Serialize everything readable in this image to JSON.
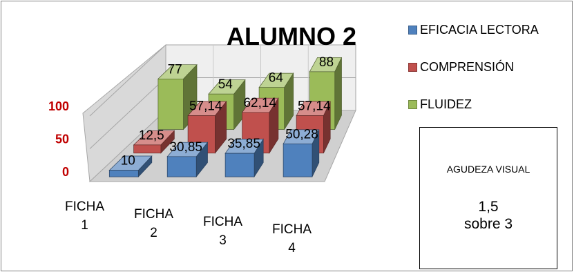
{
  "chart_data": {
    "type": "bar",
    "title": "ALUMNO 2",
    "categories": [
      "FICHA 1",
      "FICHA 2",
      "FICHA 3",
      "FICHA 4"
    ],
    "category_lines": [
      [
        "FICHA",
        "1"
      ],
      [
        "FICHA",
        "2"
      ],
      [
        "FICHA",
        "3"
      ],
      [
        "FICHA",
        "4"
      ]
    ],
    "series": [
      {
        "name": "EFICACIA LECTORA",
        "values": [
          10,
          30.85,
          35.85,
          50.28
        ],
        "labels": [
          "10",
          "30,85",
          "35,85",
          "50,28"
        ],
        "color": "#4f81bd"
      },
      {
        "name": "COMPRENSIÓN",
        "values": [
          12.5,
          57.14,
          62.14,
          57.14
        ],
        "labels": [
          "12,5",
          "57,14",
          "62,14",
          "57,14"
        ],
        "color": "#c0504d"
      },
      {
        "name": "FLUIDEZ",
        "values": [
          77,
          54,
          64,
          88
        ],
        "labels": [
          "77",
          "54",
          "64",
          "88"
        ],
        "color": "#9bbb59"
      }
    ],
    "yticks": [
      "0",
      "50",
      "100"
    ],
    "ylim": [
      0,
      100
    ],
    "legend_position": "right",
    "grid": true
  },
  "info_box": {
    "label": "AGUDEZA VISUAL",
    "value": "1,5",
    "unit": "sobre 3"
  }
}
